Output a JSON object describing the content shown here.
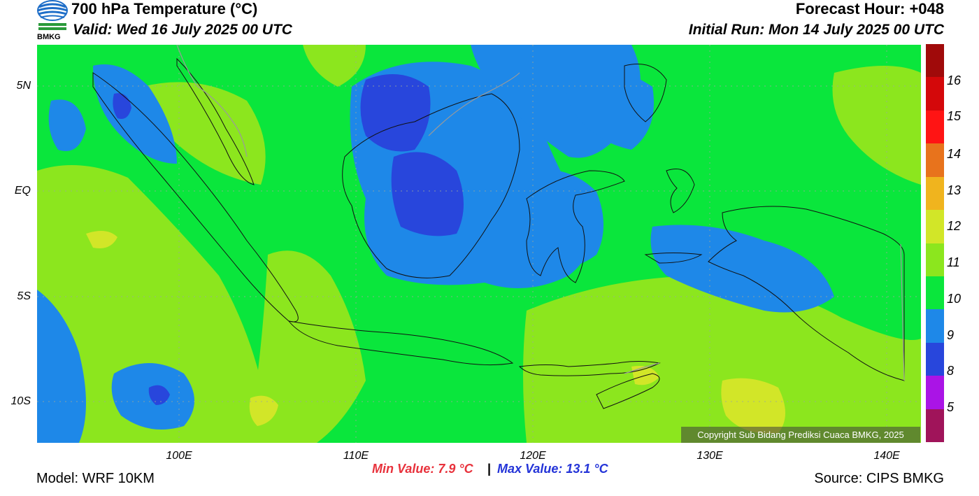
{
  "header": {
    "title": "700 hPa Temperature (°C)",
    "valid": "Valid: Wed 16 July 2025 00 UTC",
    "forecast_hour": "Forecast Hour: +048",
    "initial_run": "Initial Run: Mon 14 July 2025 00 UTC",
    "logo_text": "BMKG"
  },
  "map": {
    "y_ticks": [
      "5N",
      "EQ",
      "5S",
      "10S"
    ],
    "x_ticks": [
      "100E",
      "110E",
      "120E",
      "130E",
      "140E"
    ],
    "copyright": "Copyright Sub Bidang Prediksi Cuaca BMKG, 2025"
  },
  "colorbar": {
    "labels": [
      "16",
      "15",
      "14",
      "13",
      "12",
      "11",
      "10",
      "9",
      "8",
      "5"
    ],
    "colors": [
      "#a00a0a",
      "#d4080a",
      "#ff1414",
      "#e8731c",
      "#f0b41e",
      "#d2e628",
      "#8ce61e",
      "#0ae63c",
      "#1e88e8",
      "#2846dc",
      "#aa14e6",
      "#a0145a"
    ]
  },
  "footer": {
    "model": "Model: WRF 10KM",
    "min_value": "Min Value: 7.9 °C",
    "separator": "|",
    "max_value": "Max Value: 13.1 °C",
    "source": "Source: CIPS BMKG"
  }
}
